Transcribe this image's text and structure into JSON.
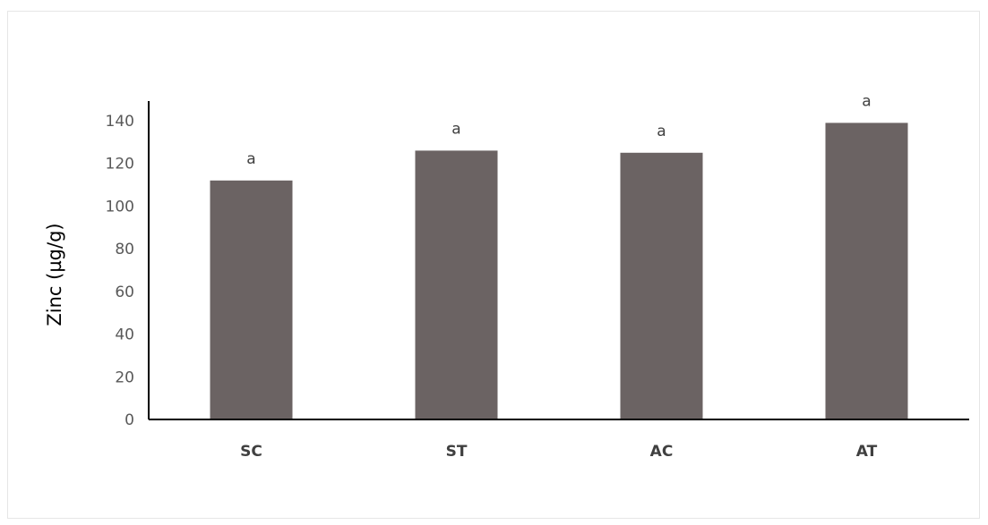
{
  "chart_data": {
    "type": "bar",
    "title": "",
    "xlabel": "",
    "ylabel": "Zinc (µg/g)",
    "categories": [
      "SC",
      "ST",
      "AC",
      "AT"
    ],
    "values": [
      112,
      126,
      125,
      139
    ],
    "data_labels": [
      "a",
      "a",
      "a",
      "a"
    ],
    "ylim": [
      0,
      140
    ],
    "yticks": [
      0,
      20,
      40,
      60,
      80,
      100,
      120,
      140
    ],
    "grid": false,
    "legend": "none",
    "colors": {
      "bar": "#6b6363",
      "axis": "#000000"
    }
  }
}
